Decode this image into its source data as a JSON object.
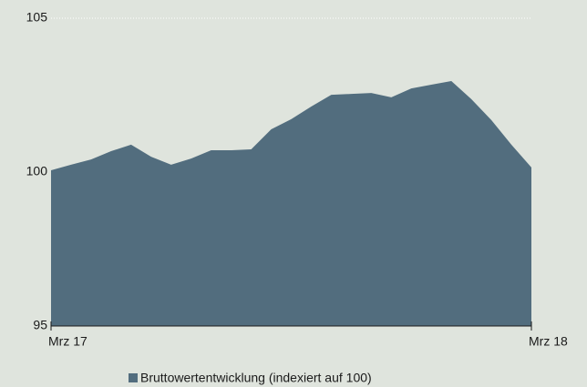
{
  "chart_data": {
    "type": "area",
    "categories": [
      "Mrz 17",
      null,
      null,
      null,
      null,
      null,
      null,
      null,
      null,
      null,
      null,
      null,
      null,
      null,
      null,
      null,
      null,
      null,
      null,
      null,
      null,
      null,
      null,
      null,
      "Mrz 18"
    ],
    "series": [
      {
        "name": "Bruttowertentwicklung (indexiert auf 100)",
        "color": "#526d7e",
        "values": [
          100.06,
          100.24,
          100.41,
          100.68,
          100.89,
          100.5,
          100.24,
          100.44,
          100.71,
          100.71,
          100.74,
          101.39,
          101.72,
          102.13,
          102.51,
          102.54,
          102.57,
          102.43,
          102.72,
          102.84,
          102.96,
          102.37,
          101.69,
          100.89,
          100.15
        ]
      }
    ],
    "ylim": [
      95,
      105
    ],
    "yticks": [
      95,
      100,
      105
    ],
    "grid": true,
    "legend": "bottom"
  }
}
